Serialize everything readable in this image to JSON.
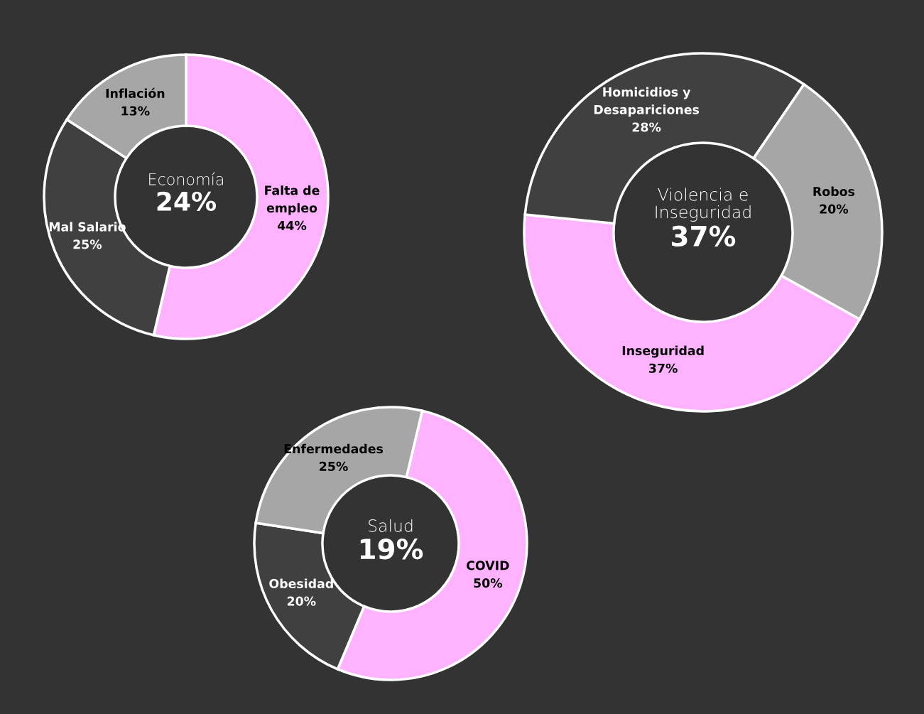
{
  "chart_data": [
    {
      "type": "donut",
      "title": "Economía",
      "annotations": [
        "24%"
      ],
      "categories": [
        "Falta de\nempleo",
        "Mal Salario",
        "Inflación"
      ],
      "values": [
        44,
        25,
        13
      ],
      "colors": [
        "#ffb3ff",
        "#404040",
        "#a6a6a6"
      ],
      "value_labels": [
        "44%",
        "25%",
        "13%"
      ]
    },
    {
      "type": "donut",
      "title": "Violencia e\nInseguridad",
      "annotations": [
        "37%"
      ],
      "categories": [
        "Inseguridad",
        "Homicidios y\nDesapariciones",
        "Robos"
      ],
      "values": [
        37,
        28,
        20
      ],
      "colors": [
        "#ffb3ff",
        "#404040",
        "#a6a6a6"
      ],
      "value_labels": [
        "37%",
        "28%",
        "20%"
      ]
    },
    {
      "type": "donut",
      "title": "Salud",
      "annotations": [
        "19%"
      ],
      "categories": [
        "COVID",
        "Obesidad",
        "Enfermedades"
      ],
      "values": [
        50,
        20,
        25
      ],
      "colors": [
        "#ffb3ff",
        "#404040",
        "#a6a6a6"
      ],
      "value_labels": [
        "50%",
        "20%",
        "25%"
      ]
    }
  ]
}
